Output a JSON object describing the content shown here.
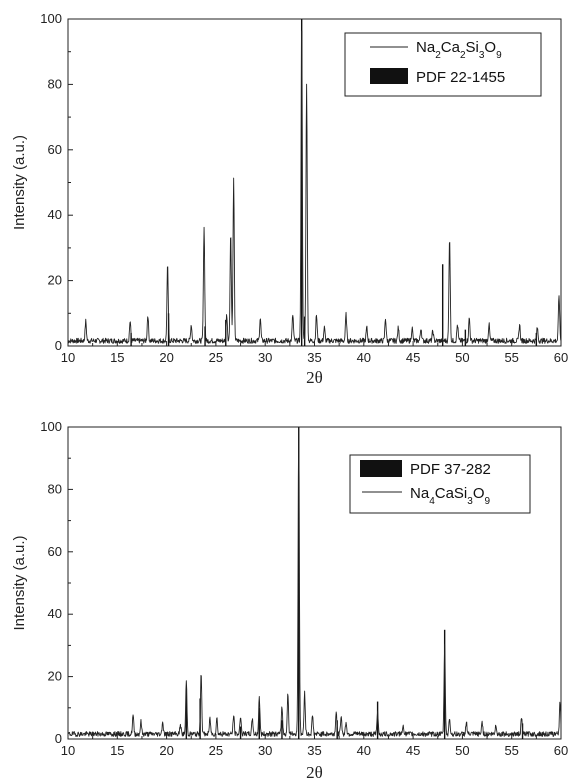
{
  "chart_data": [
    {
      "type": "line",
      "xlabel": "2θ",
      "ylabel": "Intensity (a.u.)",
      "xlim": [
        10,
        60
      ],
      "ylim": [
        0,
        100
      ],
      "xticks": [
        10,
        15,
        20,
        25,
        30,
        35,
        40,
        45,
        50,
        55,
        60
      ],
      "yticks": [
        0,
        20,
        40,
        60,
        80,
        100
      ],
      "legend": "top-right",
      "series": [
        {
          "name": "Na2Ca2Si3O9",
          "style": "line",
          "color": "#222222",
          "peaks": [
            [
              11.8,
              6
            ],
            [
              16.3,
              6
            ],
            [
              18.1,
              8
            ],
            [
              20.1,
              23
            ],
            [
              22.5,
              5
            ],
            [
              23.8,
              35
            ],
            [
              26.1,
              8
            ],
            [
              26.5,
              33
            ],
            [
              26.8,
              49
            ],
            [
              29.5,
              7
            ],
            [
              32.8,
              8
            ],
            [
              33.7,
              100
            ],
            [
              34.2,
              79
            ],
            [
              35.2,
              8
            ],
            [
              36.0,
              4
            ],
            [
              38.2,
              8
            ],
            [
              40.3,
              4
            ],
            [
              42.2,
              7
            ],
            [
              43.5,
              4
            ],
            [
              44.9,
              4
            ],
            [
              45.8,
              4
            ],
            [
              47.0,
              3
            ],
            [
              48.7,
              32
            ],
            [
              49.5,
              5
            ],
            [
              50.7,
              7
            ],
            [
              52.7,
              5
            ],
            [
              55.8,
              5
            ],
            [
              57.6,
              4
            ],
            [
              59.8,
              14
            ]
          ]
        },
        {
          "name": "PDF 22-1455",
          "style": "stick",
          "color": "#111111",
          "peaks": [
            [
              16.4,
              4
            ],
            [
              20.2,
              10
            ],
            [
              23.9,
              6
            ],
            [
              26.0,
              8
            ],
            [
              33.7,
              100
            ],
            [
              34.0,
              9
            ],
            [
              48.0,
              25
            ],
            [
              50.3,
              5
            ],
            [
              57.5,
              4
            ]
          ]
        }
      ]
    },
    {
      "type": "line",
      "xlabel": "2θ",
      "ylabel": "Intensity (a.u.)",
      "xlim": [
        10,
        60
      ],
      "ylim": [
        0,
        100
      ],
      "xticks": [
        10,
        15,
        20,
        25,
        30,
        35,
        40,
        45,
        50,
        55,
        60
      ],
      "yticks": [
        0,
        20,
        40,
        60,
        80,
        100
      ],
      "legend": "top-right",
      "series": [
        {
          "name": "PDF 37-282",
          "style": "stick",
          "color": "#111111",
          "peaks": [
            [
              22.0,
              16
            ],
            [
              23.4,
              13
            ],
            [
              27.5,
              4
            ],
            [
              29.4,
              10
            ],
            [
              31.7,
              6
            ],
            [
              33.4,
              100
            ],
            [
              37.3,
              6
            ],
            [
              41.4,
              12
            ],
            [
              48.2,
              35
            ],
            [
              56.1,
              5
            ]
          ]
        },
        {
          "name": "Na4CaSi3O9",
          "style": "line",
          "color": "#222222",
          "peaks": [
            [
              16.6,
              6
            ],
            [
              17.4,
              4
            ],
            [
              19.6,
              4
            ],
            [
              21.4,
              3
            ],
            [
              22.0,
              17
            ],
            [
              23.5,
              20
            ],
            [
              24.4,
              5
            ],
            [
              25.1,
              5
            ],
            [
              26.8,
              6
            ],
            [
              27.5,
              6
            ],
            [
              28.7,
              5
            ],
            [
              29.4,
              12
            ],
            [
              31.7,
              9
            ],
            [
              32.3,
              13
            ],
            [
              33.4,
              100
            ],
            [
              34.0,
              13
            ],
            [
              34.8,
              6
            ],
            [
              37.2,
              7
            ],
            [
              37.7,
              6
            ],
            [
              38.2,
              4
            ],
            [
              41.4,
              7
            ],
            [
              44.0,
              3
            ],
            [
              48.2,
              28
            ],
            [
              48.7,
              5
            ],
            [
              50.4,
              4
            ],
            [
              52.0,
              4
            ],
            [
              53.4,
              3
            ],
            [
              56.0,
              5
            ],
            [
              59.9,
              10
            ]
          ]
        }
      ]
    }
  ]
}
